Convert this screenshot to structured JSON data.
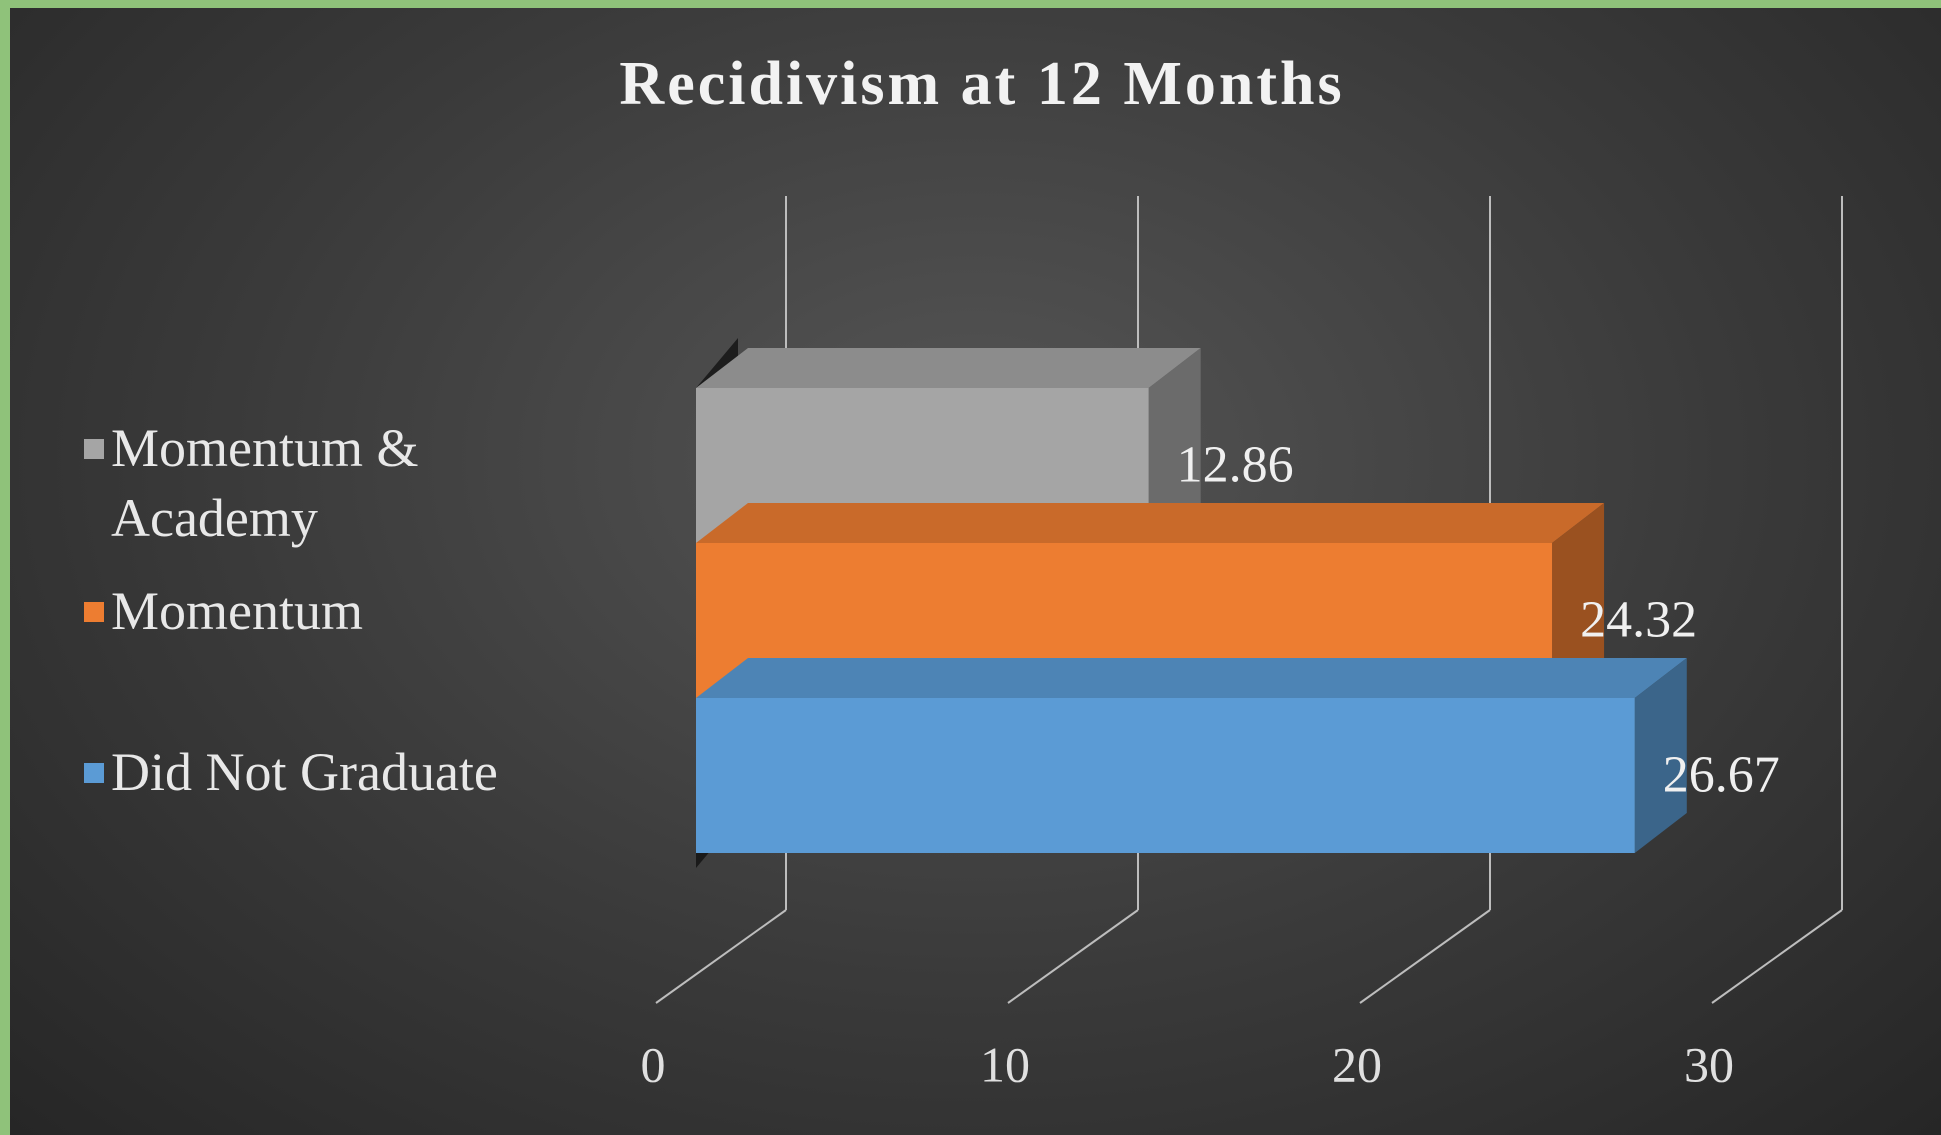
{
  "chart_data": {
    "type": "bar3d",
    "title": "Recidivism at 12 Months",
    "series": [
      {
        "name": "Momentum & Academy",
        "color": "#a5a5a5",
        "values": [
          12.86
        ]
      },
      {
        "name": "Momentum",
        "color": "#ed7d31",
        "values": [
          24.32
        ]
      },
      {
        "name": "Did Not Graduate",
        "color": "#5b9bd5",
        "values": [
          26.67
        ]
      }
    ],
    "xlim": [
      0,
      30
    ],
    "xticks": [
      0,
      10,
      20,
      30
    ],
    "grid": true,
    "legend": "left"
  }
}
